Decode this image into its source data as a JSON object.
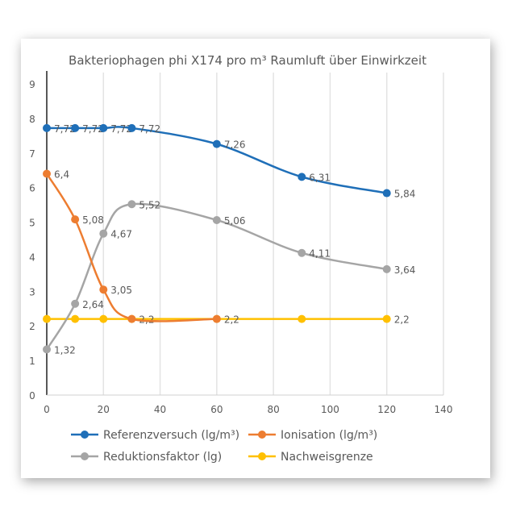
{
  "chart_data": {
    "type": "line",
    "title": "Bakteriophagen phi X174 pro m³ Raumluft über Einwirkzeit",
    "xlabel": "",
    "ylabel": "",
    "xlim": [
      0,
      140
    ],
    "ylim": [
      0,
      9
    ],
    "xticks": [
      "0",
      "20",
      "40",
      "60",
      "80",
      "100",
      "120",
      "140"
    ],
    "yticks": [
      "0",
      "1",
      "2",
      "3",
      "4",
      "5",
      "6",
      "7",
      "8",
      "9"
    ],
    "grid": "vertical",
    "smooth": true,
    "legend_position": "bottom",
    "series": [
      {
        "name": "Referenzversuch (lg/m³)",
        "color": "#1f6fb8",
        "x": [
          0,
          10,
          20,
          30,
          60,
          90,
          120
        ],
        "y": [
          7.72,
          7.72,
          7.72,
          7.72,
          7.26,
          6.31,
          5.84
        ],
        "labels": [
          "7,72",
          "7,72",
          "7,72",
          "7,72",
          "7,26",
          "6,31",
          "5,84"
        ]
      },
      {
        "name": "Ionisation (lg/m³)",
        "color": "#ed7d31",
        "x": [
          0,
          10,
          20,
          30,
          60
        ],
        "y": [
          6.4,
          5.08,
          3.05,
          2.2,
          2.2
        ],
        "labels": [
          "6,4",
          "5,08",
          "3,05",
          null,
          null
        ]
      },
      {
        "name": "Reduktionsfaktor (lg)",
        "color": "#a5a5a5",
        "x": [
          0,
          10,
          20,
          30,
          60,
          90,
          120
        ],
        "y": [
          1.32,
          2.64,
          4.67,
          5.52,
          5.06,
          4.11,
          3.64
        ],
        "labels": [
          "1,32",
          "2,64",
          "4,67",
          "5,52",
          "5,06",
          "4,11",
          "3,64"
        ]
      },
      {
        "name": "Nachweisgrenze",
        "color": "#ffc000",
        "x": [
          0,
          10,
          20,
          30,
          60,
          90,
          120
        ],
        "y": [
          2.2,
          2.2,
          2.2,
          2.2,
          2.2,
          2.2,
          2.2
        ],
        "labels": [
          null,
          null,
          null,
          "2,2",
          "2,2",
          null,
          "2,2"
        ]
      }
    ]
  }
}
